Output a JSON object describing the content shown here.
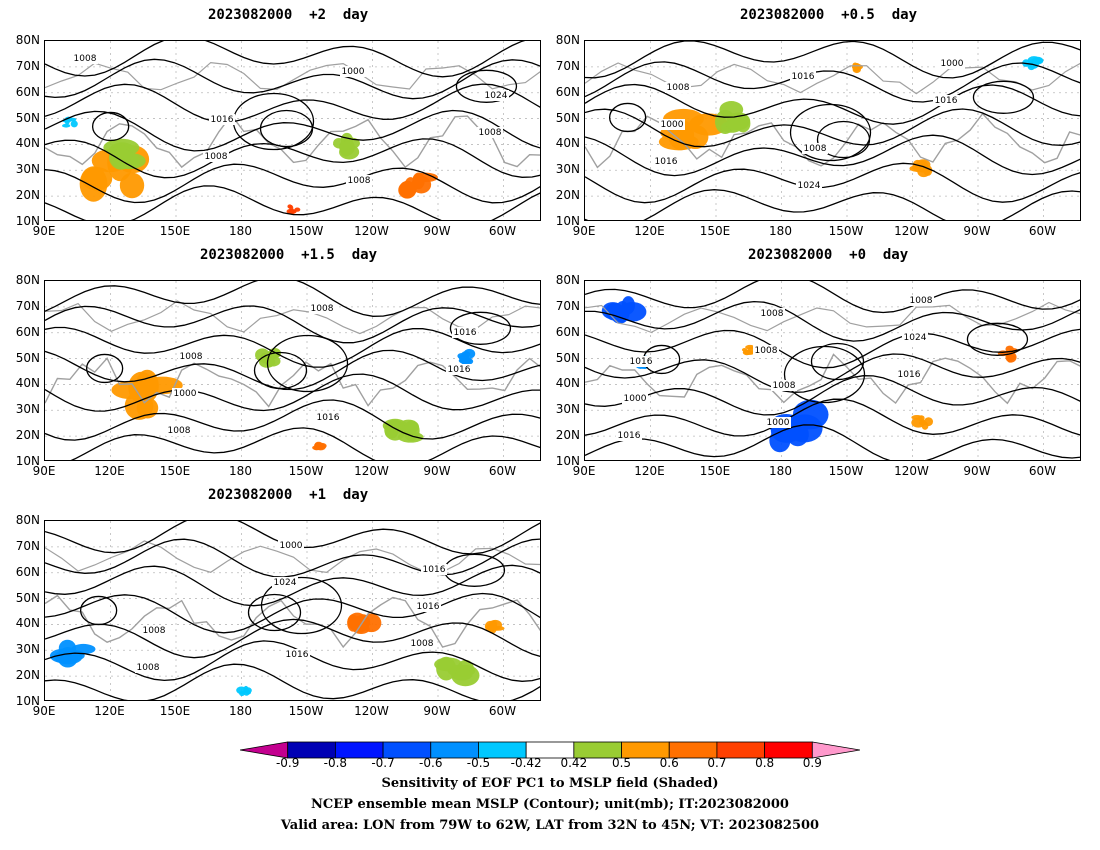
{
  "panels": [
    {
      "id": "p2",
      "title": "2023082000  +2  day",
      "iso_labels": [
        [
          "1008"
        ],
        [
          "1016"
        ],
        [
          "1008"
        ],
        [
          "1024"
        ],
        [
          "1008"
        ],
        [
          "1000"
        ],
        [
          "1008"
        ]
      ]
    },
    {
      "id": "p05",
      "title": "2023082000  +0.5  day",
      "iso_labels": [
        [
          "1008"
        ],
        [
          "1008"
        ],
        [
          "1000"
        ],
        [
          "1000"
        ],
        [
          "1024"
        ],
        [
          "1016"
        ],
        [
          "1016"
        ],
        [
          "1016"
        ]
      ]
    },
    {
      "id": "p15",
      "title": "2023082000  +1.5  day",
      "iso_labels": [
        [
          "1008"
        ],
        [
          "1016"
        ],
        [
          "1016"
        ],
        [
          "1000"
        ],
        [
          "1008"
        ],
        [
          "1016"
        ],
        [
          "1008"
        ]
      ]
    },
    {
      "id": "p0",
      "title": "2023082000  +0  day",
      "iso_labels": [
        [
          "1008"
        ],
        [
          "1008"
        ],
        [
          "1016"
        ],
        [
          "1000"
        ],
        [
          "1024"
        ],
        [
          "1000"
        ],
        [
          "1008"
        ],
        [
          "1016"
        ],
        [
          "1016"
        ],
        [
          "1008"
        ]
      ]
    },
    {
      "id": "p1",
      "title": "2023082000  +1  day",
      "iso_labels": [
        [
          "1016"
        ],
        [
          "1016"
        ],
        [
          "1008"
        ],
        [
          "1000"
        ],
        [
          "1016"
        ],
        [
          "1008"
        ],
        [
          "1024"
        ],
        [
          "1008"
        ]
      ]
    }
  ],
  "lat_ticks": [
    "80N",
    "70N",
    "60N",
    "50N",
    "40N",
    "30N",
    "20N",
    "10N"
  ],
  "lon_ticks": [
    "90E",
    "120E",
    "150E",
    "180",
    "150W",
    "120W",
    "90W",
    "60W"
  ],
  "colorbar": {
    "colors": [
      "#c3008f",
      "#0000b4",
      "#0014ff",
      "#0050ff",
      "#0090ff",
      "#00c8ff",
      "#ffffff",
      "#99cc33",
      "#ff9900",
      "#ff7000",
      "#ff4000",
      "#ff0000",
      "#ff99cc"
    ],
    "labels": [
      "-0.9",
      "-0.8",
      "-0.7",
      "-0.6",
      "-0.5",
      "-0.42",
      "0.42",
      "0.5",
      "0.6",
      "0.7",
      "0.8",
      "0.9"
    ]
  },
  "captions": [
    "Sensitivity of EOF PC1 to MSLP field (Shaded)",
    "NCEP ensemble mean MSLP (Contour); unit(mb); IT:2023082000",
    "Valid area: LON from 79W to 62W, LAT from 32N to 45N; VT: 2023082500"
  ]
}
